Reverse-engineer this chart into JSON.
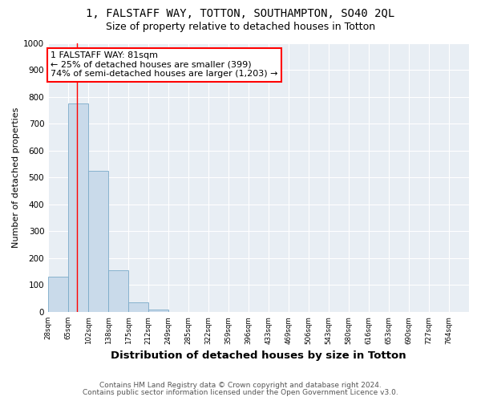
{
  "title": "1, FALSTAFF WAY, TOTTON, SOUTHAMPTON, SO40 2QL",
  "subtitle": "Size of property relative to detached houses in Totton",
  "xlabel": "Distribution of detached houses by size in Totton",
  "ylabel": "Number of detached properties",
  "footnote1": "Contains HM Land Registry data © Crown copyright and database right 2024.",
  "footnote2": "Contains public sector information licensed under the Open Government Licence v3.0.",
  "bin_labels": [
    "28sqm",
    "65sqm",
    "102sqm",
    "138sqm",
    "175sqm",
    "212sqm",
    "249sqm",
    "285sqm",
    "322sqm",
    "359sqm",
    "396sqm",
    "433sqm",
    "469sqm",
    "506sqm",
    "543sqm",
    "580sqm",
    "616sqm",
    "653sqm",
    "690sqm",
    "727sqm",
    "764sqm"
  ],
  "bar_values": [
    130,
    775,
    525,
    155,
    35,
    10,
    0,
    0,
    0,
    0,
    0,
    0,
    0,
    0,
    0,
    0,
    0,
    0,
    0,
    0
  ],
  "bar_color": "#c9daea",
  "bar_edge_color": "#7aaac8",
  "red_line_x": 1.43,
  "annotation_box_text": "1 FALSTAFF WAY: 81sqm\n← 25% of detached houses are smaller (399)\n74% of semi-detached houses are larger (1,203) →",
  "ylim": [
    0,
    1000
  ],
  "yticks": [
    0,
    100,
    200,
    300,
    400,
    500,
    600,
    700,
    800,
    900,
    1000
  ],
  "background_color": "#ffffff",
  "plot_bg_color": "#e8eef4",
  "title_fontsize": 10,
  "subtitle_fontsize": 9,
  "xlabel_fontsize": 9.5,
  "ylabel_fontsize": 8,
  "annotation_fontsize": 8,
  "footnote_fontsize": 6.5
}
